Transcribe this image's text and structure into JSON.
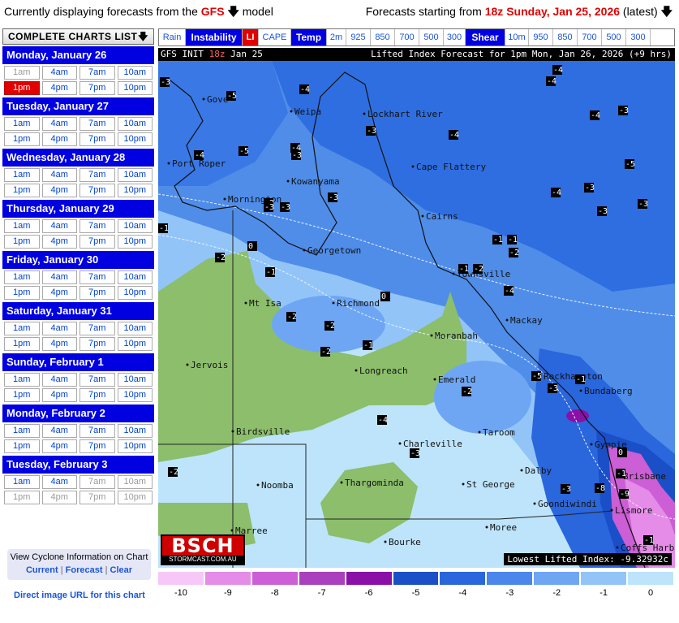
{
  "topbar": {
    "left_prefix": "Currently displaying forecasts from the",
    "model": "GFS",
    "left_suffix": "model",
    "right_prefix": "Forecasts starting from",
    "run": "18z Sunday, Jan 25, 2026",
    "right_suffix": "(latest)",
    "arrow_icon": "down-arrow-icon"
  },
  "sidebar": {
    "complete_charts_label": "COMPLETE CHARTS LIST",
    "days": [
      {
        "label": "Monday, January 26",
        "times": [
          [
            "1am",
            "past"
          ],
          [
            "4am",
            "normal"
          ],
          [
            "7am",
            "normal"
          ],
          [
            "10am",
            "normal"
          ],
          [
            "1pm",
            "active"
          ],
          [
            "4pm",
            "normal"
          ],
          [
            "7pm",
            "normal"
          ],
          [
            "10pm",
            "normal"
          ]
        ]
      },
      {
        "label": "Tuesday, January 27",
        "times": [
          [
            "1am",
            "normal"
          ],
          [
            "4am",
            "normal"
          ],
          [
            "7am",
            "normal"
          ],
          [
            "10am",
            "normal"
          ],
          [
            "1pm",
            "normal"
          ],
          [
            "4pm",
            "normal"
          ],
          [
            "7pm",
            "normal"
          ],
          [
            "10pm",
            "normal"
          ]
        ]
      },
      {
        "label": "Wednesday, January 28",
        "times": [
          [
            "1am",
            "normal"
          ],
          [
            "4am",
            "normal"
          ],
          [
            "7am",
            "normal"
          ],
          [
            "10am",
            "normal"
          ],
          [
            "1pm",
            "normal"
          ],
          [
            "4pm",
            "normal"
          ],
          [
            "7pm",
            "normal"
          ],
          [
            "10pm",
            "normal"
          ]
        ]
      },
      {
        "label": "Thursday, January 29",
        "times": [
          [
            "1am",
            "normal"
          ],
          [
            "4am",
            "normal"
          ],
          [
            "7am",
            "normal"
          ],
          [
            "10am",
            "normal"
          ],
          [
            "1pm",
            "normal"
          ],
          [
            "4pm",
            "normal"
          ],
          [
            "7pm",
            "normal"
          ],
          [
            "10pm",
            "normal"
          ]
        ]
      },
      {
        "label": "Friday, January 30",
        "times": [
          [
            "1am",
            "normal"
          ],
          [
            "4am",
            "normal"
          ],
          [
            "7am",
            "normal"
          ],
          [
            "10am",
            "normal"
          ],
          [
            "1pm",
            "normal"
          ],
          [
            "4pm",
            "normal"
          ],
          [
            "7pm",
            "normal"
          ],
          [
            "10pm",
            "normal"
          ]
        ]
      },
      {
        "label": "Saturday, January 31",
        "times": [
          [
            "1am",
            "normal"
          ],
          [
            "4am",
            "normal"
          ],
          [
            "7am",
            "normal"
          ],
          [
            "10am",
            "normal"
          ],
          [
            "1pm",
            "normal"
          ],
          [
            "4pm",
            "normal"
          ],
          [
            "7pm",
            "normal"
          ],
          [
            "10pm",
            "normal"
          ]
        ]
      },
      {
        "label": "Sunday, February 1",
        "times": [
          [
            "1am",
            "normal"
          ],
          [
            "4am",
            "normal"
          ],
          [
            "7am",
            "normal"
          ],
          [
            "10am",
            "normal"
          ],
          [
            "1pm",
            "normal"
          ],
          [
            "4pm",
            "normal"
          ],
          [
            "7pm",
            "normal"
          ],
          [
            "10pm",
            "normal"
          ]
        ]
      },
      {
        "label": "Monday, February 2",
        "times": [
          [
            "1am",
            "normal"
          ],
          [
            "4am",
            "normal"
          ],
          [
            "7am",
            "normal"
          ],
          [
            "10am",
            "normal"
          ],
          [
            "1pm",
            "normal"
          ],
          [
            "4pm",
            "normal"
          ],
          [
            "7pm",
            "normal"
          ],
          [
            "10pm",
            "normal"
          ]
        ]
      },
      {
        "label": "Tuesday, February 3",
        "times": [
          [
            "1am",
            "normal"
          ],
          [
            "4am",
            "normal"
          ],
          [
            "7am",
            "past"
          ],
          [
            "10am",
            "past"
          ],
          [
            "1pm",
            "past"
          ],
          [
            "4pm",
            "past"
          ],
          [
            "7pm",
            "past"
          ],
          [
            "10pm",
            "past"
          ]
        ]
      }
    ],
    "cyclone_title": "View Cyclone Information on Chart",
    "cyclone_links": [
      "Current",
      "Forecast",
      "Clear"
    ],
    "direct_url": "Direct image URL for this chart"
  },
  "tabs": [
    {
      "label": "Rain",
      "kind": "link"
    },
    {
      "label": "Instability",
      "kind": "hdr"
    },
    {
      "label": "LI",
      "kind": "sel"
    },
    {
      "label": "CAPE",
      "kind": "link"
    },
    {
      "label": "Temp",
      "kind": "hdr"
    },
    {
      "label": "2m",
      "kind": "link"
    },
    {
      "label": "925",
      "kind": "link"
    },
    {
      "label": "850",
      "kind": "link"
    },
    {
      "label": "700",
      "kind": "link"
    },
    {
      "label": "500",
      "kind": "link"
    },
    {
      "label": "300",
      "kind": "link"
    },
    {
      "label": "Shear",
      "kind": "hdr"
    },
    {
      "label": "10m",
      "kind": "link"
    },
    {
      "label": "950",
      "kind": "link"
    },
    {
      "label": "850",
      "kind": "link"
    },
    {
      "label": "700",
      "kind": "link"
    },
    {
      "label": "500",
      "kind": "link"
    },
    {
      "label": "300",
      "kind": "link"
    }
  ],
  "map": {
    "head_prefix": "GFS INIT",
    "head_init": "18z",
    "head_date": "Jan 25",
    "head_right": "Lifted Index Forecast for 1pm Mon, Jan 26, 2026 (+9 hrs)",
    "lowest": "Lowest Lifted Index: -9.32932c",
    "logo_big": "BSCH",
    "logo_small": "STORMCAST.COM.AU",
    "cities": [
      {
        "name": "Gove"
      },
      {
        "name": "Weipa"
      },
      {
        "name": "Lockhart River"
      },
      {
        "name": "Port Roper"
      },
      {
        "name": "Cape Flattery"
      },
      {
        "name": "Kowanyama"
      },
      {
        "name": "Mornington"
      },
      {
        "name": "Cairns"
      },
      {
        "name": "Georgetown"
      },
      {
        "name": "Townsville"
      },
      {
        "name": "Mt Isa"
      },
      {
        "name": "Richmond"
      },
      {
        "name": "Mackay"
      },
      {
        "name": "Moranbah"
      },
      {
        "name": "Jervois"
      },
      {
        "name": "Longreach"
      },
      {
        "name": "Emerald"
      },
      {
        "name": "Rockhampton"
      },
      {
        "name": "Bundaberg"
      },
      {
        "name": "Birdsville"
      },
      {
        "name": "Charleville"
      },
      {
        "name": "Taroom"
      },
      {
        "name": "Gympie"
      },
      {
        "name": "Dalby"
      },
      {
        "name": "Brisbane"
      },
      {
        "name": "Noomba"
      },
      {
        "name": "Thargominda"
      },
      {
        "name": "St George"
      },
      {
        "name": "Goondiwindi"
      },
      {
        "name": "Lismore"
      },
      {
        "name": "Moree"
      },
      {
        "name": "Marree"
      },
      {
        "name": "Bourke"
      },
      {
        "name": "Coffs Harbour"
      }
    ],
    "values": [
      "-3",
      "-5",
      "-4",
      "-4",
      "-4",
      "-3",
      "-4",
      "-3",
      "-5",
      "-4",
      "-4",
      "-4",
      "-3",
      "-5",
      "-3",
      "-3",
      "-4",
      "-3",
      "-3",
      "-2",
      "-1",
      "-2",
      "-3",
      "-3",
      "-1",
      "-1",
      "-2",
      "0",
      "-1",
      "-2",
      "-2",
      "-2",
      "-1",
      "0",
      "-1",
      "-2",
      "-4",
      "-5",
      "-3",
      "-2",
      "-1",
      "0",
      "-4",
      "-3",
      "-3",
      "-8",
      "-9",
      "-1",
      "-1",
      "-2"
    ]
  },
  "legend": {
    "labels": [
      "-10",
      "-9",
      "-8",
      "-7",
      "-6",
      "-5",
      "-4",
      "-3",
      "-2",
      "-1",
      "0"
    ],
    "colors": [
      "#f7c8f7",
      "#e58be8",
      "#cc5ed6",
      "#aa40bd",
      "#8a10a8",
      "#1a4fc8",
      "#2a66dc",
      "#4a86ec",
      "#6ea6f4",
      "#92c4f8",
      "#bde4fb"
    ]
  }
}
